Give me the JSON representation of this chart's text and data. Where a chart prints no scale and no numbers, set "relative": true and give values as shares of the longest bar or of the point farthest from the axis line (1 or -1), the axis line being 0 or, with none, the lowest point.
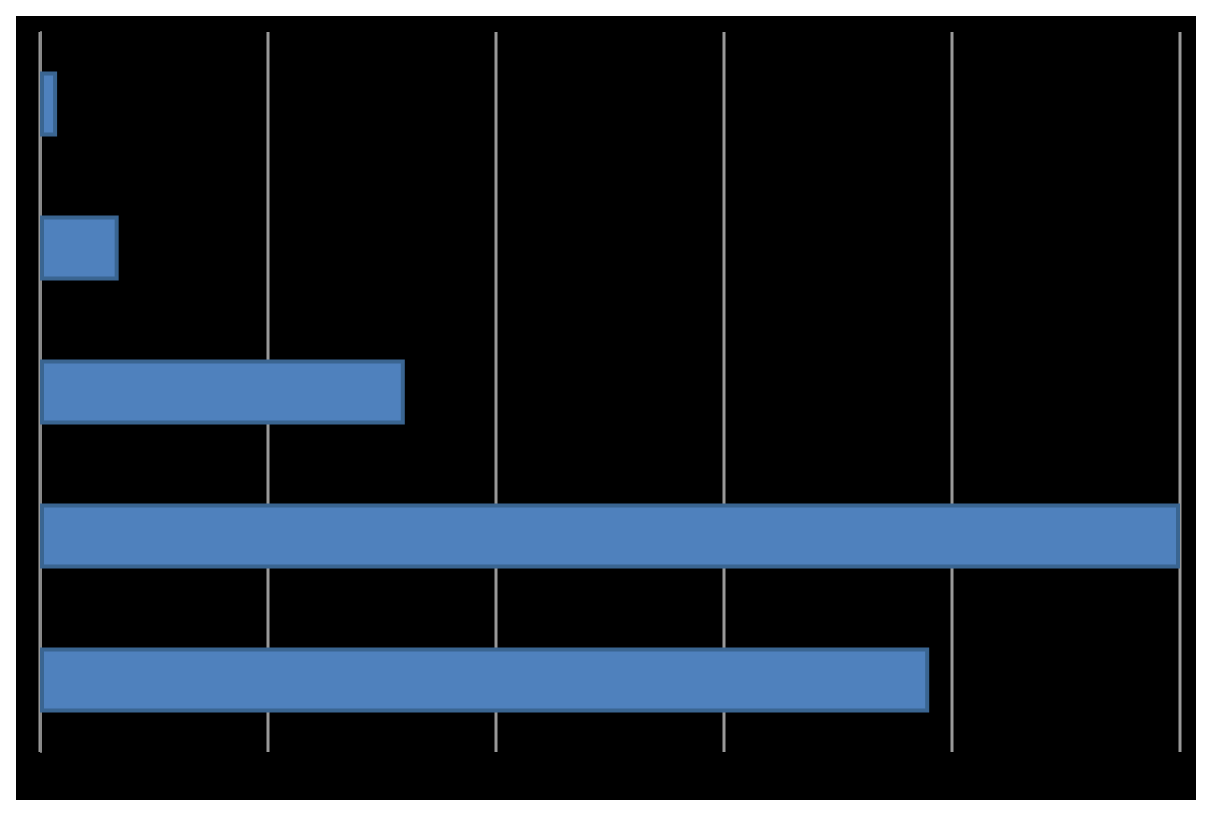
{
  "chart_data": {
    "type": "bar",
    "orientation": "horizontal",
    "relative": true,
    "categories": [
      null,
      null,
      null,
      null,
      null
    ],
    "values": [
      0.015,
      0.069,
      0.32,
      1,
      0.78
    ],
    "color": "#4f81bd",
    "grid": "x"
  }
}
